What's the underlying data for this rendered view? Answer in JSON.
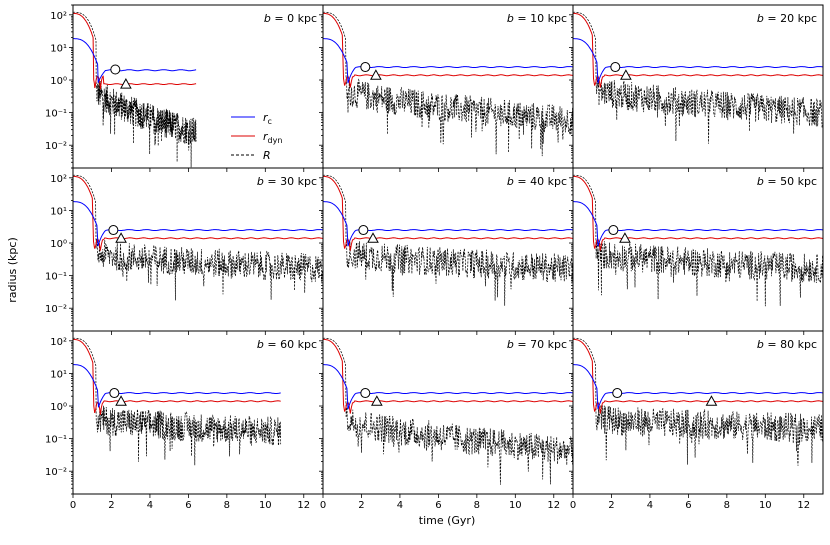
{
  "chart_data": {
    "type": "line",
    "layout": "3x3 grid of panels, shared axes",
    "xlabel": "time (Gyr)",
    "ylabel": "radius (kpc)",
    "xlim": [
      0,
      13
    ],
    "ylim": [
      0.002,
      200
    ],
    "yscale": "log",
    "xticks": [
      0,
      2,
      4,
      6,
      8,
      10,
      12
    ],
    "xtick_labels": [
      "0",
      "2",
      "4",
      "6",
      "8",
      "10",
      "12"
    ],
    "yticks": [
      0.01,
      0.1,
      1,
      10,
      100
    ],
    "ytick_labels": [
      "10⁻²",
      "10⁻¹",
      "10⁰",
      "10¹",
      "10²"
    ],
    "legend": {
      "placement": "top-left panel, center",
      "entries": [
        {
          "key": "rc",
          "label": "r",
          "sub": "c",
          "color": "#0000ff",
          "style": "solid"
        },
        {
          "key": "rdyn",
          "label": "r",
          "sub": "dyn",
          "color": "#dd0000",
          "style": "solid"
        },
        {
          "key": "R",
          "label": "R",
          "sub": "",
          "color": "#000000",
          "style": "dashed"
        }
      ]
    },
    "series_colors": {
      "rc": "#0000ff",
      "rdyn": "#dd0000",
      "R": "#000000"
    },
    "panels": [
      {
        "b_label": "b = 0 kpc",
        "b_var": "b",
        "b_text": " = 0 kpc",
        "t_end": 6.4,
        "rc_plateau": 2.0,
        "rdyn_plateau": 0.75,
        "R_start": 0.6,
        "R_end": 0.03,
        "circle": {
          "t": 2.2,
          "r": 2.1
        },
        "triangle": {
          "t": 2.75,
          "r": 0.75
        }
      },
      {
        "b_label": "b = 10 kpc",
        "b_var": "b",
        "b_text": " = 10 kpc",
        "t_end": 13,
        "rc_plateau": 2.5,
        "rdyn_plateau": 1.4,
        "R_start": 0.6,
        "R_end": 0.07,
        "circle": {
          "t": 2.2,
          "r": 2.5
        },
        "triangle": {
          "t": 2.75,
          "r": 1.4
        }
      },
      {
        "b_label": "b = 20 kpc",
        "b_var": "b",
        "b_text": " = 20 kpc",
        "t_end": 13,
        "rc_plateau": 2.5,
        "rdyn_plateau": 1.4,
        "R_start": 0.6,
        "R_end": 0.12,
        "circle": {
          "t": 2.2,
          "r": 2.5
        },
        "triangle": {
          "t": 2.75,
          "r": 1.4
        }
      },
      {
        "b_label": "b = 30 kpc",
        "b_var": "b",
        "b_text": " = 30 kpc",
        "t_end": 13,
        "rc_plateau": 2.5,
        "rdyn_plateau": 1.4,
        "R_start": 0.6,
        "R_end": 0.2,
        "circle": {
          "t": 2.1,
          "r": 2.5
        },
        "triangle": {
          "t": 2.5,
          "r": 1.4
        }
      },
      {
        "b_label": "b = 40 kpc",
        "b_var": "b",
        "b_text": " = 40 kpc",
        "t_end": 13,
        "rc_plateau": 2.5,
        "rdyn_plateau": 1.4,
        "R_start": 0.6,
        "R_end": 0.2,
        "circle": {
          "t": 2.1,
          "r": 2.5
        },
        "triangle": {
          "t": 2.6,
          "r": 1.4
        }
      },
      {
        "b_label": "b = 50 kpc",
        "b_var": "b",
        "b_text": " = 50 kpc",
        "t_end": 13,
        "rc_plateau": 2.5,
        "rdyn_plateau": 1.4,
        "R_start": 0.6,
        "R_end": 0.2,
        "circle": {
          "t": 2.1,
          "r": 2.5
        },
        "triangle": {
          "t": 2.7,
          "r": 1.4
        }
      },
      {
        "b_label": "b = 60 kpc",
        "b_var": "b",
        "b_text": " = 60 kpc",
        "t_end": 10.8,
        "rc_plateau": 2.5,
        "rdyn_plateau": 1.4,
        "R_start": 0.5,
        "R_end": 0.2,
        "circle": {
          "t": 2.15,
          "r": 2.5
        },
        "triangle": {
          "t": 2.5,
          "r": 1.4
        }
      },
      {
        "b_label": "b = 70 kpc",
        "b_var": "b",
        "b_text": " = 70 kpc",
        "t_end": 13,
        "rc_plateau": 2.5,
        "rdyn_plateau": 1.4,
        "R_start": 0.5,
        "R_end": 0.05,
        "circle": {
          "t": 2.2,
          "r": 2.5
        },
        "triangle": {
          "t": 2.8,
          "r": 1.4
        }
      },
      {
        "b_label": "b = 80 kpc",
        "b_var": "b",
        "b_text": " = 80 kpc",
        "t_end": 13,
        "rc_plateau": 2.5,
        "rdyn_plateau": 1.4,
        "R_start": 0.5,
        "R_end": 0.25,
        "circle": {
          "t": 2.3,
          "r": 2.5
        },
        "triangle": {
          "t": 7.2,
          "r": 1.4
        }
      }
    ]
  }
}
